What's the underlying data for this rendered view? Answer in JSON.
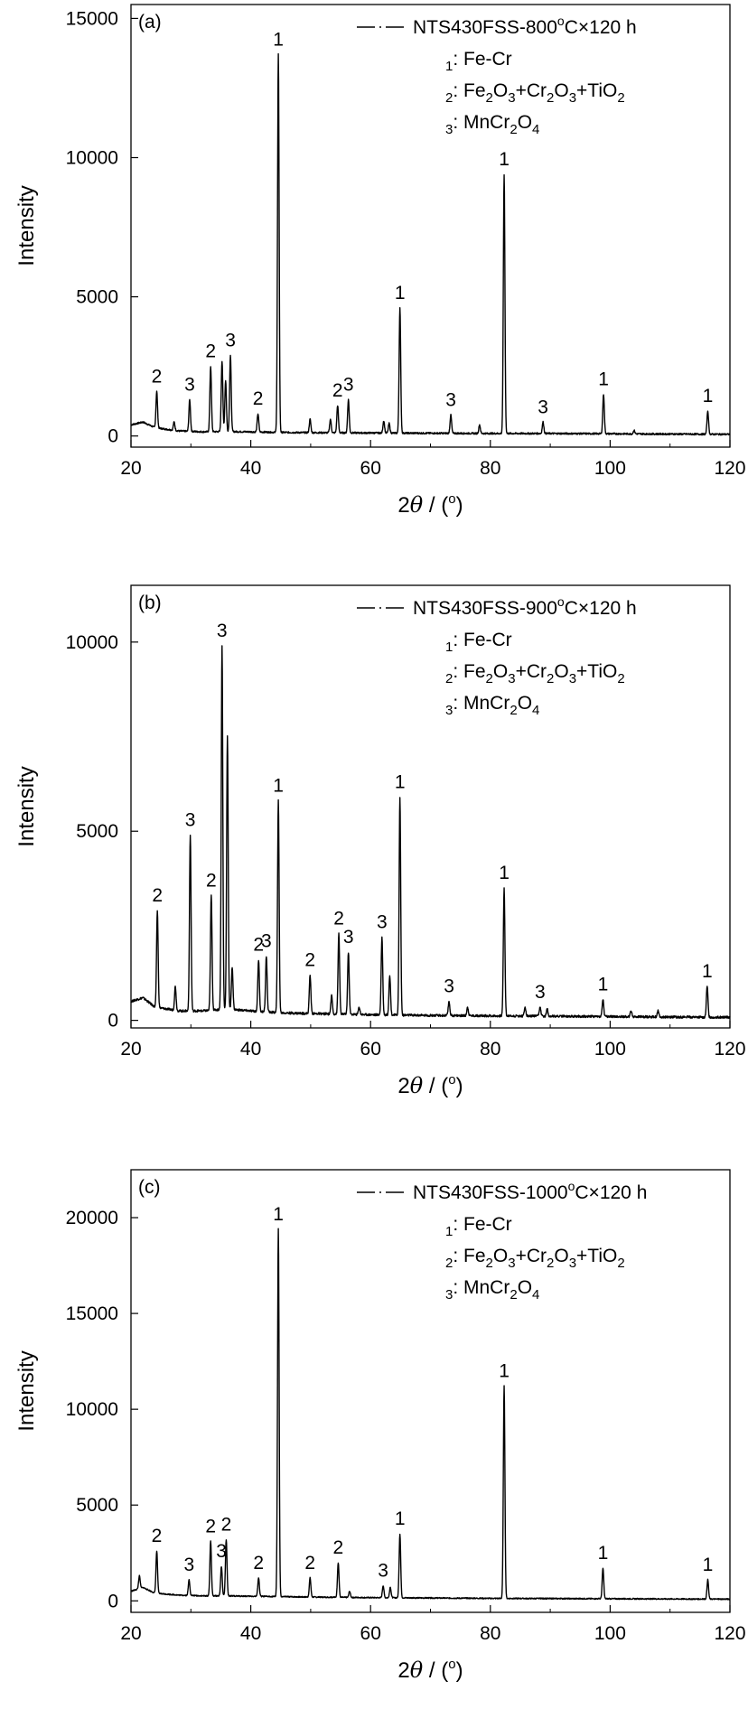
{
  "chart_data": [
    {
      "type": "line",
      "panel_label": "(a)",
      "xlabel": "2θ / (°)",
      "ylabel": "Intensity",
      "xlim": [
        20,
        120
      ],
      "ylim": [
        -400,
        15500
      ],
      "xticks": [
        20,
        40,
        60,
        80,
        100,
        120
      ],
      "yticks": [
        0,
        5000,
        10000,
        15000
      ],
      "grid": false,
      "legend_placement": "top-right",
      "legend": {
        "series": "NTS430FSS-800°C×120 h",
        "phases": [
          "1: Fe-Cr",
          "2: Fe2O3+Cr2O3+TiO2",
          "3: MnCr2O4"
        ]
      },
      "background": [
        [
          20,
          400
        ],
        [
          22,
          500
        ],
        [
          24,
          300
        ],
        [
          28,
          180
        ],
        [
          32,
          150
        ],
        [
          36,
          160
        ],
        [
          40,
          150
        ],
        [
          45,
          130
        ],
        [
          50,
          120
        ],
        [
          60,
          110
        ],
        [
          70,
          100
        ],
        [
          80,
          90
        ],
        [
          90,
          90
        ],
        [
          100,
          80
        ],
        [
          110,
          70
        ],
        [
          120,
          60
        ]
      ],
      "peaks": [
        {
          "x": 24.3,
          "y": 1600,
          "label": "2"
        },
        {
          "x": 27.2,
          "y": 500,
          "label": ""
        },
        {
          "x": 29.8,
          "y": 1300,
          "label": "3"
        },
        {
          "x": 33.3,
          "y": 2500,
          "label": "2"
        },
        {
          "x": 35.2,
          "y": 2700,
          "label": ""
        },
        {
          "x": 35.8,
          "y": 2000,
          "label": ""
        },
        {
          "x": 36.6,
          "y": 2900,
          "label": "3"
        },
        {
          "x": 41.2,
          "y": 800,
          "label": "2"
        },
        {
          "x": 44.6,
          "y": 13700,
          "label": "1"
        },
        {
          "x": 49.9,
          "y": 600,
          "label": ""
        },
        {
          "x": 53.3,
          "y": 600,
          "label": ""
        },
        {
          "x": 54.5,
          "y": 1100,
          "label": "2"
        },
        {
          "x": 56.3,
          "y": 1300,
          "label": "3"
        },
        {
          "x": 62.2,
          "y": 550,
          "label": ""
        },
        {
          "x": 63.1,
          "y": 450,
          "label": ""
        },
        {
          "x": 64.9,
          "y": 4600,
          "label": "1"
        },
        {
          "x": 73.4,
          "y": 750,
          "label": "3"
        },
        {
          "x": 78.2,
          "y": 400,
          "label": ""
        },
        {
          "x": 82.3,
          "y": 9400,
          "label": "1"
        },
        {
          "x": 88.8,
          "y": 500,
          "label": "3"
        },
        {
          "x": 98.9,
          "y": 1500,
          "label": "1"
        },
        {
          "x": 104.0,
          "y": 200,
          "label": ""
        },
        {
          "x": 116.3,
          "y": 900,
          "label": "1"
        }
      ]
    },
    {
      "type": "line",
      "panel_label": "(b)",
      "xlabel": "2θ / (°)",
      "ylabel": "Intensity",
      "xlim": [
        20,
        120
      ],
      "ylim": [
        -200,
        11500
      ],
      "xticks": [
        20,
        40,
        60,
        80,
        100,
        120
      ],
      "yticks": [
        0,
        5000,
        10000
      ],
      "grid": false,
      "legend_placement": "top-right",
      "legend": {
        "series": "NTS430FSS-900°C×120 h",
        "phases": [
          "1: Fe-Cr",
          "2: Fe2O3+Cr2O3+TiO2",
          "3: MnCr2O4"
        ]
      },
      "background": [
        [
          20,
          500
        ],
        [
          22,
          600
        ],
        [
          24,
          350
        ],
        [
          28,
          250
        ],
        [
          32,
          250
        ],
        [
          36,
          300
        ],
        [
          40,
          250
        ],
        [
          45,
          200
        ],
        [
          50,
          180
        ],
        [
          60,
          150
        ],
        [
          70,
          130
        ],
        [
          80,
          120
        ],
        [
          90,
          110
        ],
        [
          100,
          100
        ],
        [
          110,
          90
        ],
        [
          120,
          80
        ]
      ],
      "peaks": [
        {
          "x": 24.4,
          "y": 2900,
          "label": "2"
        },
        {
          "x": 27.4,
          "y": 900,
          "label": ""
        },
        {
          "x": 29.9,
          "y": 4900,
          "label": "3"
        },
        {
          "x": 33.4,
          "y": 3300,
          "label": "2"
        },
        {
          "x": 35.2,
          "y": 9900,
          "label": "3"
        },
        {
          "x": 36.1,
          "y": 7500,
          "label": ""
        },
        {
          "x": 36.9,
          "y": 1400,
          "label": ""
        },
        {
          "x": 41.3,
          "y": 1600,
          "label": "2"
        },
        {
          "x": 42.6,
          "y": 1700,
          "label": "3"
        },
        {
          "x": 44.6,
          "y": 5800,
          "label": "1"
        },
        {
          "x": 49.9,
          "y": 1200,
          "label": "2"
        },
        {
          "x": 53.5,
          "y": 650,
          "label": ""
        },
        {
          "x": 54.7,
          "y": 2300,
          "label": "2"
        },
        {
          "x": 56.3,
          "y": 1800,
          "label": "3"
        },
        {
          "x": 58.1,
          "y": 350,
          "label": ""
        },
        {
          "x": 61.9,
          "y": 2200,
          "label": "3"
        },
        {
          "x": 63.2,
          "y": 1200,
          "label": ""
        },
        {
          "x": 64.9,
          "y": 5900,
          "label": "1"
        },
        {
          "x": 73.1,
          "y": 500,
          "label": "3"
        },
        {
          "x": 76.2,
          "y": 350,
          "label": ""
        },
        {
          "x": 82.3,
          "y": 3500,
          "label": "1"
        },
        {
          "x": 85.8,
          "y": 350,
          "label": ""
        },
        {
          "x": 88.3,
          "y": 350,
          "label": "3"
        },
        {
          "x": 89.5,
          "y": 300,
          "label": ""
        },
        {
          "x": 98.8,
          "y": 550,
          "label": "1"
        },
        {
          "x": 103.5,
          "y": 250,
          "label": ""
        },
        {
          "x": 108.0,
          "y": 250,
          "label": ""
        },
        {
          "x": 116.2,
          "y": 900,
          "label": "1"
        }
      ]
    },
    {
      "type": "line",
      "panel_label": "(c)",
      "xlabel": "2θ / (°)",
      "ylabel": "Intensity",
      "xlim": [
        20,
        120
      ],
      "ylim": [
        -600,
        22500
      ],
      "xticks": [
        20,
        40,
        60,
        80,
        100,
        120
      ],
      "yticks": [
        0,
        5000,
        10000,
        15000,
        20000
      ],
      "grid": false,
      "legend_placement": "top-right",
      "legend": {
        "series": "NTS430FSS-1000°C×120 h",
        "phases": [
          "1: Fe-Cr",
          "2: Fe2O3+Cr2O3+TiO2",
          "3: MnCr2O4"
        ]
      },
      "background": [
        [
          20,
          500
        ],
        [
          22,
          700
        ],
        [
          24,
          400
        ],
        [
          28,
          300
        ],
        [
          32,
          260
        ],
        [
          36,
          260
        ],
        [
          40,
          240
        ],
        [
          45,
          220
        ],
        [
          50,
          200
        ],
        [
          60,
          170
        ],
        [
          70,
          150
        ],
        [
          80,
          130
        ],
        [
          90,
          120
        ],
        [
          100,
          110
        ],
        [
          110,
          100
        ],
        [
          120,
          90
        ]
      ],
      "peaks": [
        {
          "x": 21.4,
          "y": 1300,
          "label": ""
        },
        {
          "x": 24.3,
          "y": 2600,
          "label": "2"
        },
        {
          "x": 29.7,
          "y": 1100,
          "label": "3"
        },
        {
          "x": 33.3,
          "y": 3100,
          "label": "2"
        },
        {
          "x": 35.1,
          "y": 1800,
          "label": "3"
        },
        {
          "x": 35.9,
          "y": 3200,
          "label": "2"
        },
        {
          "x": 41.3,
          "y": 1200,
          "label": "2"
        },
        {
          "x": 44.6,
          "y": 19400,
          "label": "1"
        },
        {
          "x": 49.9,
          "y": 1200,
          "label": "2"
        },
        {
          "x": 54.6,
          "y": 2000,
          "label": "2"
        },
        {
          "x": 56.5,
          "y": 500,
          "label": ""
        },
        {
          "x": 62.1,
          "y": 800,
          "label": "3"
        },
        {
          "x": 63.3,
          "y": 700,
          "label": ""
        },
        {
          "x": 64.9,
          "y": 3500,
          "label": "1"
        },
        {
          "x": 82.3,
          "y": 11200,
          "label": "1"
        },
        {
          "x": 98.8,
          "y": 1700,
          "label": "1"
        },
        {
          "x": 116.3,
          "y": 1100,
          "label": "1"
        }
      ]
    }
  ]
}
